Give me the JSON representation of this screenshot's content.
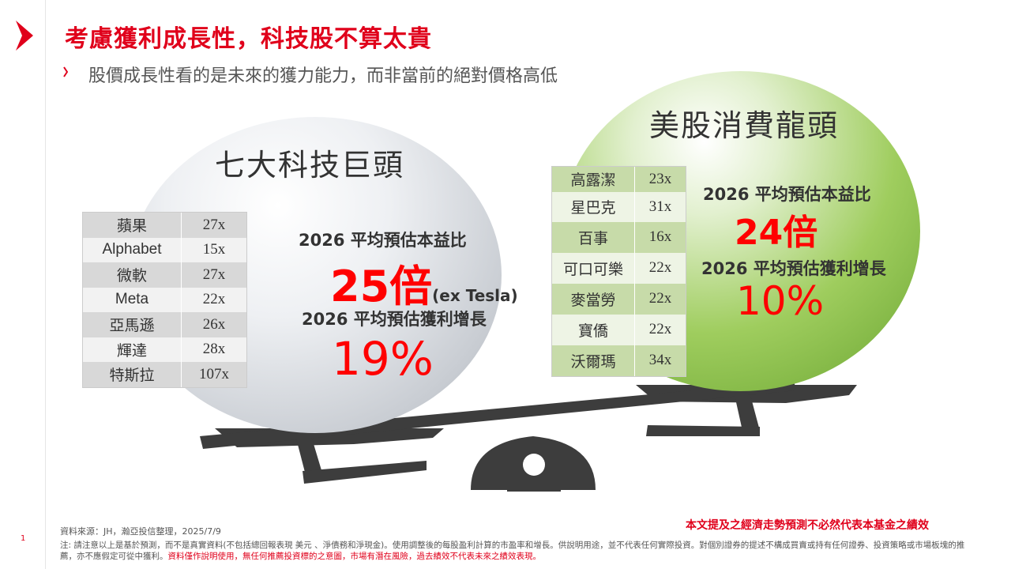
{
  "header": {
    "title": "考慮獲利成長性，科技股不算太貴",
    "subtitle": "股價成長性看的是未來的獲力能力，而非當前的絕對價格高低"
  },
  "left_group": {
    "title": "七大科技巨頭",
    "stats": {
      "pe_label": "2026 平均預估本益比",
      "pe_value": "25倍",
      "pe_note": "(ex Tesla)",
      "growth_label": "2026 平均預估獲利增長",
      "growth_value": "19%"
    },
    "table": [
      {
        "name": "蘋果",
        "pe": "27x"
      },
      {
        "name": "Alphabet",
        "pe": "15x"
      },
      {
        "name": "微軟",
        "pe": "27x"
      },
      {
        "name": "Meta",
        "pe": "22x"
      },
      {
        "name": "亞馬遜",
        "pe": "26x"
      },
      {
        "name": "輝達",
        "pe": "28x"
      },
      {
        "name": "特斯拉",
        "pe": "107x"
      }
    ]
  },
  "right_group": {
    "title": "美股消費龍頭",
    "stats": {
      "pe_label": "2026 平均預估本益比",
      "pe_value": "24倍",
      "growth_label": "2026 平均預估獲利增長",
      "growth_value": "10%"
    },
    "table": [
      {
        "name": "高露潔",
        "pe": "23x"
      },
      {
        "name": "星巴克",
        "pe": "31x"
      },
      {
        "name": "百事",
        "pe": "16x"
      },
      {
        "name": "可口可樂",
        "pe": "22x"
      },
      {
        "name": "麥當勞",
        "pe": "22x"
      },
      {
        "name": "寶僑",
        "pe": "22x"
      },
      {
        "name": "沃爾瑪",
        "pe": "34x"
      }
    ]
  },
  "footer": {
    "page_number": "1",
    "source": "資料來源：JH，瀚亞投信整理，2025/7/9",
    "disclaimer": "本文提及之經濟走勢預測不必然代表本基金之績效",
    "note_main": "注: 請注意以上是基於預測，而不是真實資料(不包括總回報表現 美元 、淨債務和淨現金)。使用調整後的每股盈利計算的市盈率和增長。供說明用途，並不代表任何實際投資。對個別證券的提述不構成買賣或持有任何證券、投資策略或市場板塊的推薦，亦不應假定可從中獲利。",
    "note_red": "資料僅作說明使用，無任何推薦投資標的之意圖，市場有潛在風險，過去績效不代表未來之績效表現。"
  },
  "colors": {
    "accent_red": "#e0001b",
    "value_red": "#ff0000",
    "scale_gray": "#3d3d3d"
  }
}
